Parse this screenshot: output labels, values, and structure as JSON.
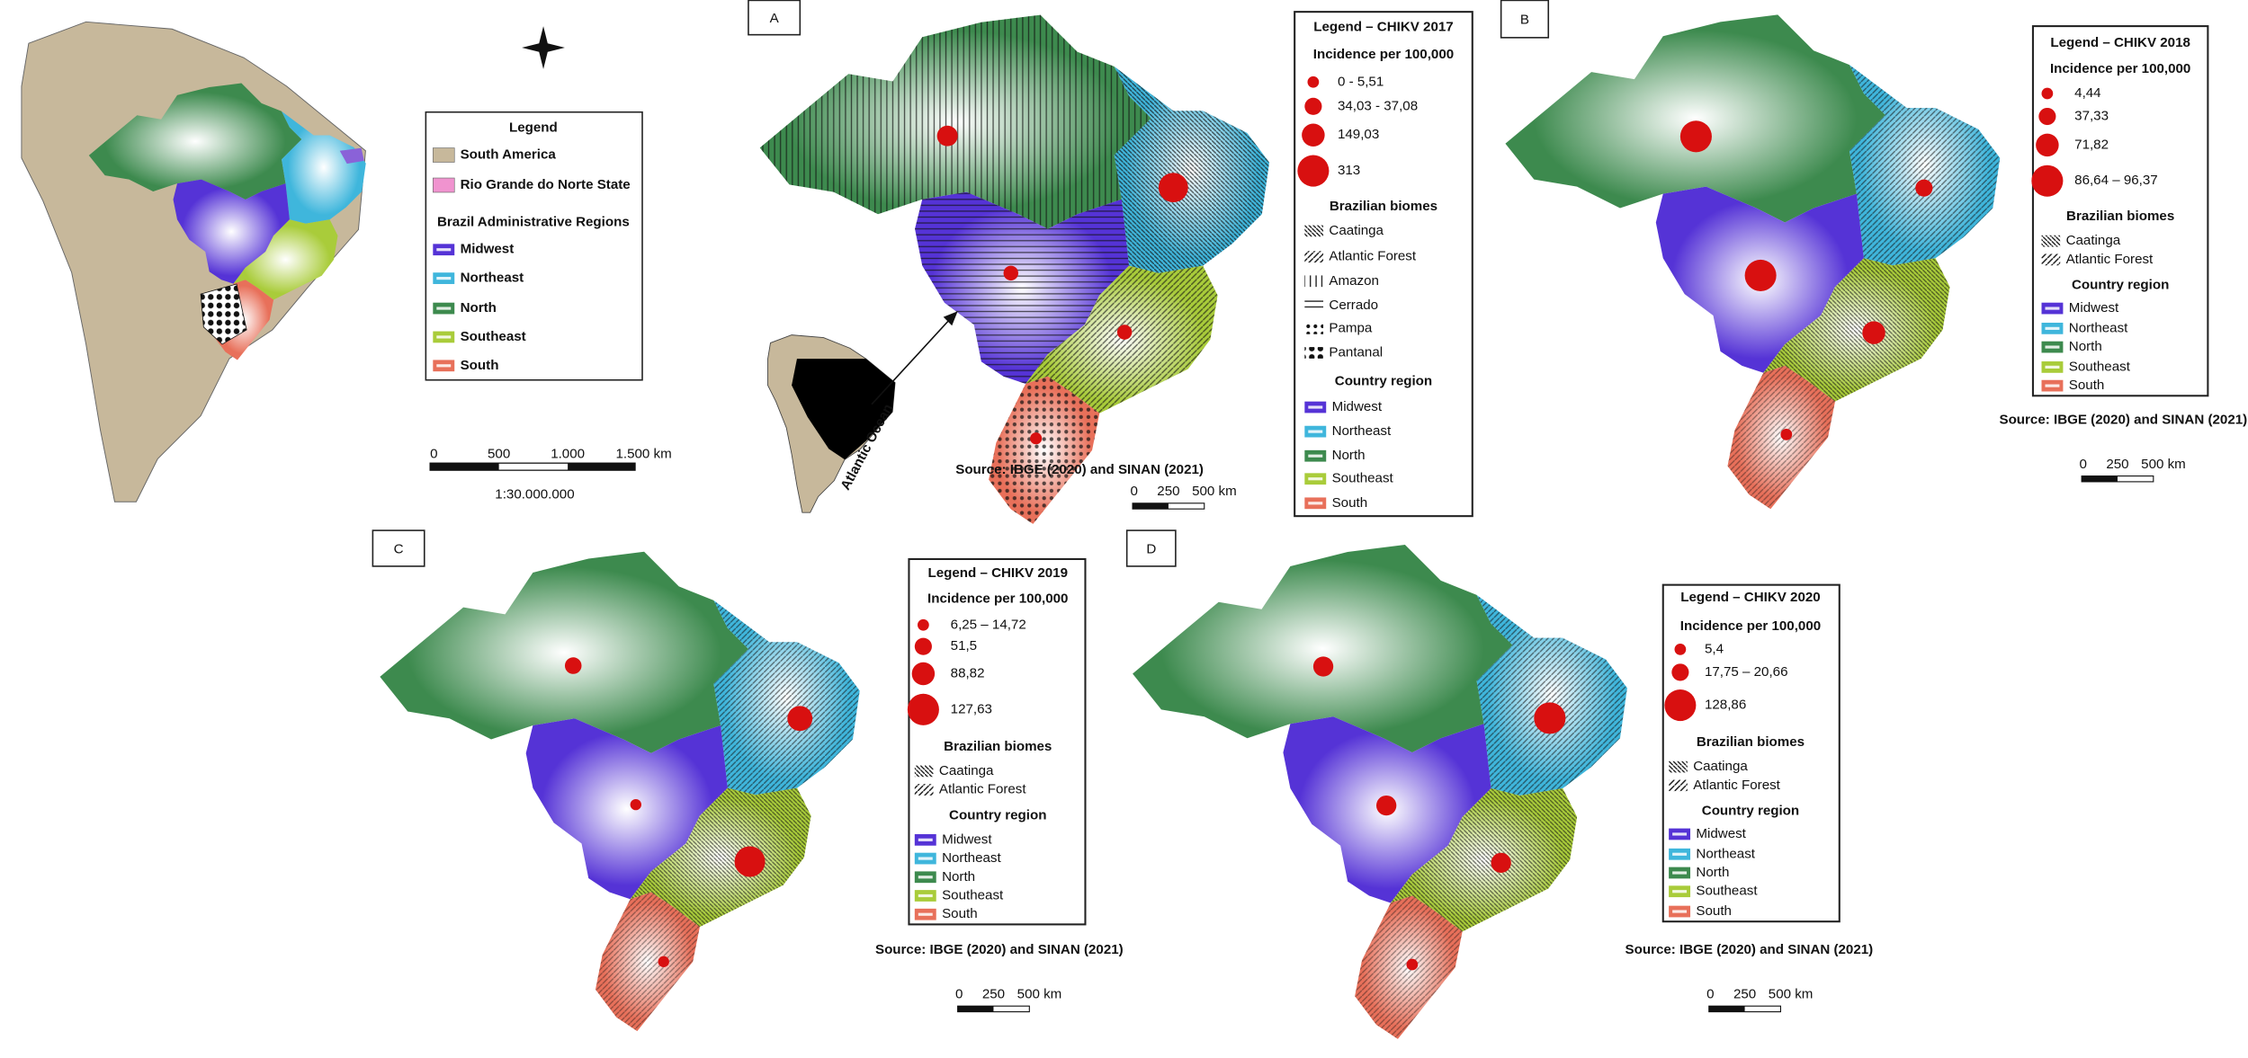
{
  "overview": {
    "legend_title": "Legend",
    "items": [
      "South America",
      "Rio Grande do Norte State"
    ],
    "regions_title": "Brazil Administrative Regions",
    "regions": [
      "Midwest",
      "Northeast",
      "North",
      "Southeast",
      "South"
    ],
    "scale": [
      "0",
      "500",
      "1.000",
      "1.500 km"
    ],
    "ratio": "1:30.000.000"
  },
  "inset_label": "Atlantic Ocean",
  "panels": [
    {
      "label": "A",
      "legend_title": "Legend – CHIKV 2017",
      "incidence_title": "Incidence per 100,000",
      "incidence_classes": [
        "0 - 5,51",
        "34,03 - 37,08",
        "149,03",
        "313"
      ],
      "biomes_title": "Brazilian biomes",
      "biomes": [
        "Caatinga",
        "Atlantic Forest",
        "Amazon",
        "Cerrado",
        "Pampa",
        "Pantanal"
      ],
      "regions_title": "Country region",
      "regions": [
        "Midwest",
        "Northeast",
        "North",
        "Southeast",
        "South"
      ],
      "source": "Source: IBGE (2020) and SINAN (2021)",
      "scale": [
        "0",
        "250",
        "500 km"
      ]
    },
    {
      "label": "B",
      "legend_title": "Legend – CHIKV 2018",
      "incidence_title": "Incidence per 100,000",
      "incidence_classes": [
        "4,44",
        "37,33",
        "71,82",
        "86,64 – 96,37"
      ],
      "biomes_title": "Brazilian biomes",
      "biomes": [
        "Caatinga",
        "Atlantic Forest"
      ],
      "regions_title": "Country region",
      "regions": [
        "Midwest",
        "Northeast",
        "North",
        "Southeast",
        "South"
      ],
      "source": "Source: IBGE (2020) and SINAN (2021)",
      "scale": [
        "0",
        "250",
        "500 km"
      ]
    },
    {
      "label": "C",
      "legend_title": "Legend – CHIKV 2019",
      "incidence_title": "Incidence per 100,000",
      "incidence_classes": [
        "6,25 – 14,72",
        "51,5",
        "88,82",
        "127,63"
      ],
      "biomes_title": "Brazilian biomes",
      "biomes": [
        "Caatinga",
        "Atlantic Forest"
      ],
      "regions_title": "Country region",
      "regions": [
        "Midwest",
        "Northeast",
        "North",
        "Southeast",
        "South"
      ],
      "source": "Source: IBGE (2020) and SINAN (2021)",
      "scale": [
        "0",
        "250",
        "500 km"
      ]
    },
    {
      "label": "D",
      "legend_title": "Legend – CHIKV 2020",
      "incidence_title": "Incidence per 100,000",
      "incidence_classes": [
        "5,4",
        "17,75 – 20,66",
        "128,86"
      ],
      "biomes_title": "Brazilian biomes",
      "biomes": [
        "Caatinga",
        "Atlantic Forest"
      ],
      "regions_title": "Country region",
      "regions": [
        "Midwest",
        "Northeast",
        "North",
        "Southeast",
        "South"
      ],
      "source": "Source: IBGE (2020) and SINAN (2021)",
      "scale": [
        "0",
        "250",
        "500 km"
      ]
    }
  ]
}
